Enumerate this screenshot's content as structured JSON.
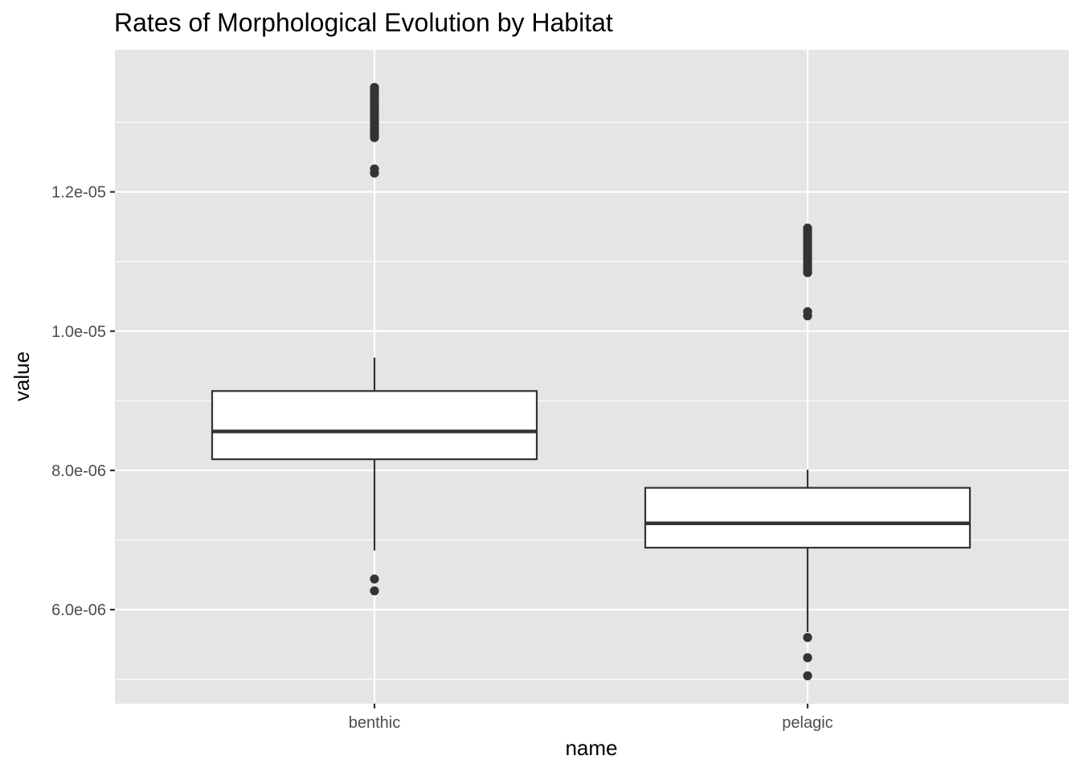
{
  "chart_data": {
    "type": "box",
    "title": "Rates of Morphological Evolution by Habitat",
    "xlabel": "name",
    "ylabel": "value",
    "ylim": [
      4.65e-06,
      1.404e-05
    ],
    "yticks": [
      {
        "value": 6e-06,
        "label": "6.0e-06"
      },
      {
        "value": 8e-06,
        "label": "8.0e-06"
      },
      {
        "value": 1e-05,
        "label": "1.0e-05"
      },
      {
        "value": 1.2e-05,
        "label": "1.2e-05"
      }
    ],
    "yminor": [
      5e-06,
      7e-06,
      9e-06,
      1.1e-05,
      1.3e-05
    ],
    "grid": true,
    "categories": [
      "benthic",
      "pelagic"
    ],
    "boxes": [
      {
        "category": "benthic",
        "whisker_low": 6.85e-06,
        "q1": 8.16e-06,
        "median": 8.56e-06,
        "q3": 9.14e-06,
        "whisker_high": 9.62e-06,
        "outliers": [
          6.27e-06,
          6.44e-06,
          1.227e-05,
          1.233e-05,
          1.278e-05,
          1.282e-05,
          1.286e-05,
          1.29e-05,
          1.294e-05,
          1.298e-05,
          1.302e-05,
          1.306e-05,
          1.31e-05,
          1.314e-05,
          1.318e-05,
          1.322e-05,
          1.326e-05,
          1.33e-05,
          1.334e-05,
          1.338e-05,
          1.342e-05,
          1.346e-05,
          1.35e-05
        ]
      },
      {
        "category": "pelagic",
        "whisker_low": 5.68e-06,
        "q1": 6.89e-06,
        "median": 7.24e-06,
        "q3": 7.75e-06,
        "whisker_high": 8.01e-06,
        "outliers": [
          5.05e-06,
          5.31e-06,
          5.6e-06,
          1.022e-05,
          1.028e-05,
          1.084e-05,
          1.088e-05,
          1.092e-05,
          1.096e-05,
          1.1e-05,
          1.104e-05,
          1.108e-05,
          1.112e-05,
          1.116e-05,
          1.12e-05,
          1.124e-05,
          1.128e-05,
          1.132e-05,
          1.136e-05,
          1.14e-05,
          1.144e-05,
          1.148e-05
        ]
      }
    ],
    "colors": {
      "panel": "#e5e5e5",
      "grid": "#ffffff",
      "box_fill": "#ffffff",
      "box_line": "#333333",
      "point": "#333333",
      "tick": "#333333"
    }
  }
}
